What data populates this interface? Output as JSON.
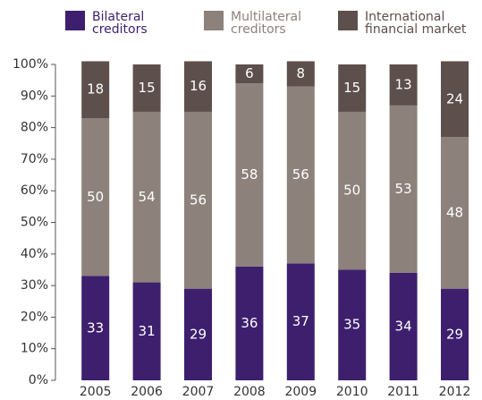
{
  "chart_data": {
    "type": "stacked_bar",
    "categories": [
      "2005",
      "2006",
      "2007",
      "2008",
      "2009",
      "2010",
      "2011",
      "2012"
    ],
    "series": [
      {
        "name": "Bilateral creditors",
        "color": "#3d1f6e",
        "values": [
          33,
          31,
          29,
          36,
          37,
          35,
          34,
          29
        ]
      },
      {
        "name": "Multilateral creditors",
        "color": "#8c817b",
        "values": [
          50,
          54,
          56,
          58,
          56,
          50,
          53,
          48
        ]
      },
      {
        "name": "International financial market",
        "color": "#5d4f4b",
        "values": [
          18,
          15,
          16,
          6,
          8,
          15,
          13,
          24
        ]
      }
    ],
    "ylim": [
      0,
      100
    ],
    "yticks": [
      {
        "value": 0,
        "label": "0%"
      },
      {
        "value": 10,
        "label": "10%"
      },
      {
        "value": 20,
        "label": "20%"
      },
      {
        "value": 30,
        "label": "30%"
      },
      {
        "value": 40,
        "label": "40%"
      },
      {
        "value": 50,
        "label": "50%"
      },
      {
        "value": 60,
        "label": "60%"
      },
      {
        "value": 70,
        "label": "70%"
      },
      {
        "value": 80,
        "label": "80%"
      },
      {
        "value": 90,
        "label": "90%"
      },
      {
        "value": 100,
        "label": "100%"
      }
    ],
    "legend": "top"
  }
}
